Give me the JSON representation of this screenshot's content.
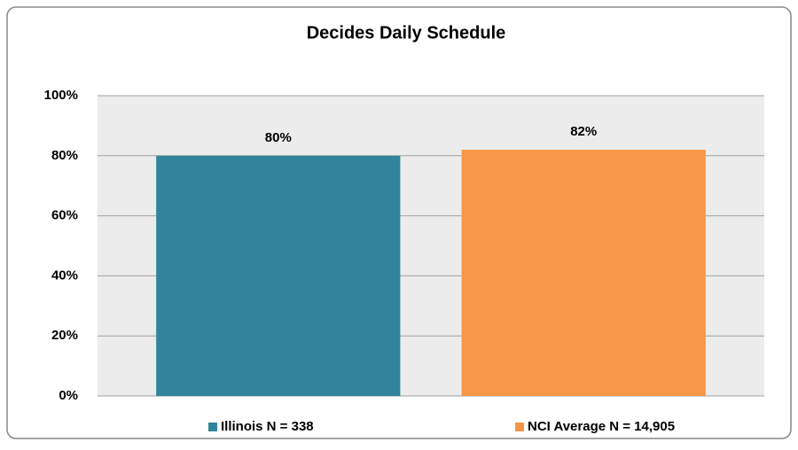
{
  "chart_data": {
    "type": "bar",
    "title": "Decides Daily Schedule",
    "categories": [
      null
    ],
    "series": [
      {
        "name": "Illinois N = 338",
        "color": "#31849b",
        "values": [
          80
        ],
        "value_labels": [
          "80%"
        ]
      },
      {
        "name": "NCI Average N = 14,905",
        "color": "#f79646",
        "values": [
          82
        ],
        "value_labels": [
          "82%"
        ]
      }
    ],
    "ylim": [
      0,
      100
    ],
    "yticks": [
      {
        "value": 0,
        "label": "0%"
      },
      {
        "value": 20,
        "label": "20%"
      },
      {
        "value": 40,
        "label": "40%"
      },
      {
        "value": 60,
        "label": "60%"
      },
      {
        "value": 80,
        "label": "80%"
      },
      {
        "value": 100,
        "label": "100%"
      }
    ],
    "grid": true,
    "legend": "bottom"
  }
}
